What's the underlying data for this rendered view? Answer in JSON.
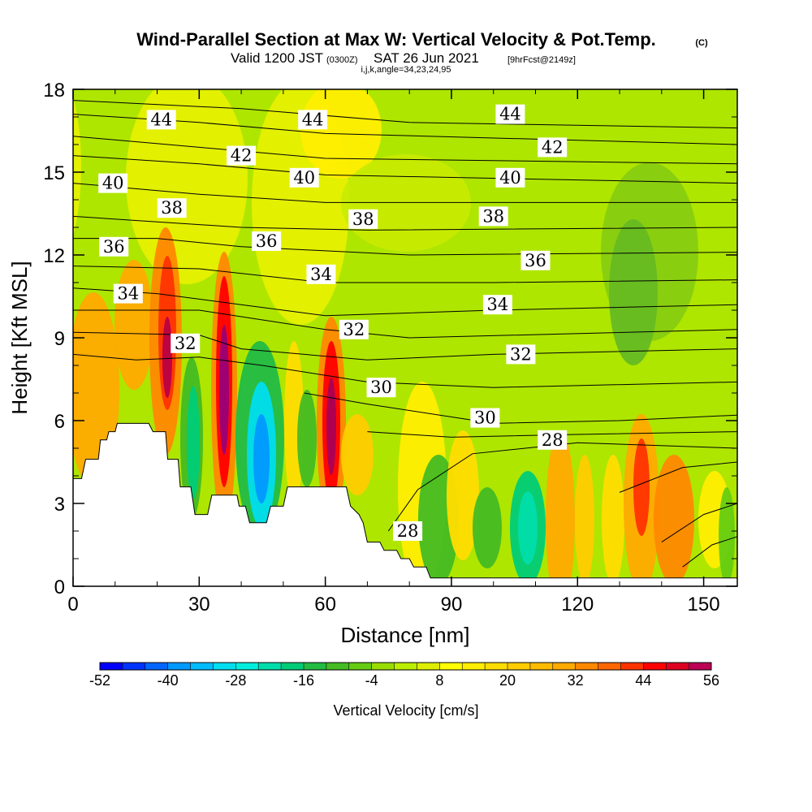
{
  "header": {
    "title": "Wind-Parallel Section at Max W: Vertical Velocity & Pot.Temp.",
    "copyright": "(C)",
    "valid_prefix": "Valid 1200 JST",
    "valid_zulu": "(0300Z)",
    "valid_date": "SAT 26 Jun 2021",
    "forecast": "[9hrFcst@2149z]",
    "indices": "i,j,k,angle=34,23,24,95"
  },
  "chart_data": {
    "type": "heatmap",
    "xlabel": "Distance [nm]",
    "ylabel": "Height [Kft MSL]",
    "xlim": [
      0,
      158
    ],
    "ylim": [
      0,
      18
    ],
    "x_ticks": [
      "0",
      "30",
      "60",
      "90",
      "120",
      "150"
    ],
    "y_ticks": [
      "0",
      "3",
      "6",
      "9",
      "12",
      "15",
      "18"
    ],
    "colorbar": {
      "title": "Vertical Velocity [cm/s]",
      "labels": [
        "-52",
        "-40",
        "-28",
        "-16",
        "-4",
        "8",
        "20",
        "32",
        "44",
        "56"
      ],
      "min": -52,
      "max": 56,
      "step": 4,
      "colors": [
        "#0000ff",
        "#0033ff",
        "#0066ff",
        "#0099ff",
        "#00bbff",
        "#00ddee",
        "#00eedd",
        "#00ddaa",
        "#00cc77",
        "#22bb44",
        "#44bb22",
        "#66cc11",
        "#99dd00",
        "#bbee00",
        "#ddee00",
        "#ffff00",
        "#ffee00",
        "#ffdd00",
        "#ffcc00",
        "#ffbb00",
        "#ffaa00",
        "#ff8800",
        "#ff6600",
        "#ff3300",
        "#ff0000",
        "#dd0022",
        "#bb0055",
        "#990077"
      ]
    },
    "terrain": [
      [
        0,
        3.9
      ],
      [
        2,
        3.9
      ],
      [
        3,
        4.6
      ],
      [
        6,
        4.6
      ],
      [
        6.5,
        5.3
      ],
      [
        8,
        5.3
      ],
      [
        8.5,
        5.6
      ],
      [
        10,
        5.6
      ],
      [
        10.5,
        5.9
      ],
      [
        18,
        5.9
      ],
      [
        19,
        5.6
      ],
      [
        22,
        5.6
      ],
      [
        22.5,
        4.6
      ],
      [
        25,
        4.6
      ],
      [
        25.5,
        3.6
      ],
      [
        28,
        3.6
      ],
      [
        29,
        2.6
      ],
      [
        32,
        2.6
      ],
      [
        33,
        3.3
      ],
      [
        39,
        3.3
      ],
      [
        39.5,
        2.9
      ],
      [
        41,
        2.9
      ],
      [
        42,
        2.3
      ],
      [
        46,
        2.3
      ],
      [
        47,
        2.9
      ],
      [
        50,
        2.9
      ],
      [
        51,
        3.6
      ],
      [
        65,
        3.6
      ],
      [
        66,
        2.9
      ],
      [
        68,
        2.6
      ],
      [
        69,
        2.3
      ],
      [
        70,
        1.6
      ],
      [
        73,
        1.6
      ],
      [
        74,
        1.3
      ],
      [
        77,
        1.3
      ],
      [
        78,
        1.0
      ],
      [
        80,
        1.0
      ],
      [
        81,
        0.7
      ],
      [
        84,
        0.7
      ],
      [
        85,
        0.3
      ],
      [
        158,
        0.3
      ]
    ],
    "contour_labels": [
      {
        "text": "44",
        "x": 21,
        "y": 16.9
      },
      {
        "text": "44",
        "x": 57,
        "y": 16.9
      },
      {
        "text": "44",
        "x": 104,
        "y": 17.1
      },
      {
        "text": "42",
        "x": 40,
        "y": 15.6
      },
      {
        "text": "42",
        "x": 114,
        "y": 15.9
      },
      {
        "text": "40",
        "x": 9.5,
        "y": 14.6
      },
      {
        "text": "40",
        "x": 55,
        "y": 14.8
      },
      {
        "text": "40",
        "x": 104,
        "y": 14.8
      },
      {
        "text": "38",
        "x": 23.5,
        "y": 13.7
      },
      {
        "text": "38",
        "x": 69,
        "y": 13.3
      },
      {
        "text": "38",
        "x": 100,
        "y": 13.4
      },
      {
        "text": "36",
        "x": 9.7,
        "y": 12.3
      },
      {
        "text": "36",
        "x": 46,
        "y": 12.5
      },
      {
        "text": "36",
        "x": 110,
        "y": 11.8
      },
      {
        "text": "34",
        "x": 13.1,
        "y": 10.6
      },
      {
        "text": "34",
        "x": 59,
        "y": 11.3
      },
      {
        "text": "34",
        "x": 101,
        "y": 10.2
      },
      {
        "text": "32",
        "x": 26.7,
        "y": 8.8
      },
      {
        "text": "32",
        "x": 66.8,
        "y": 9.3
      },
      {
        "text": "32",
        "x": 106.5,
        "y": 8.4
      },
      {
        "text": "30",
        "x": 73.3,
        "y": 7.2
      },
      {
        "text": "30",
        "x": 98,
        "y": 6.1
      },
      {
        "text": "28",
        "x": 114,
        "y": 5.3
      },
      {
        "text": "28",
        "x": 79.6,
        "y": 2.0
      }
    ]
  }
}
